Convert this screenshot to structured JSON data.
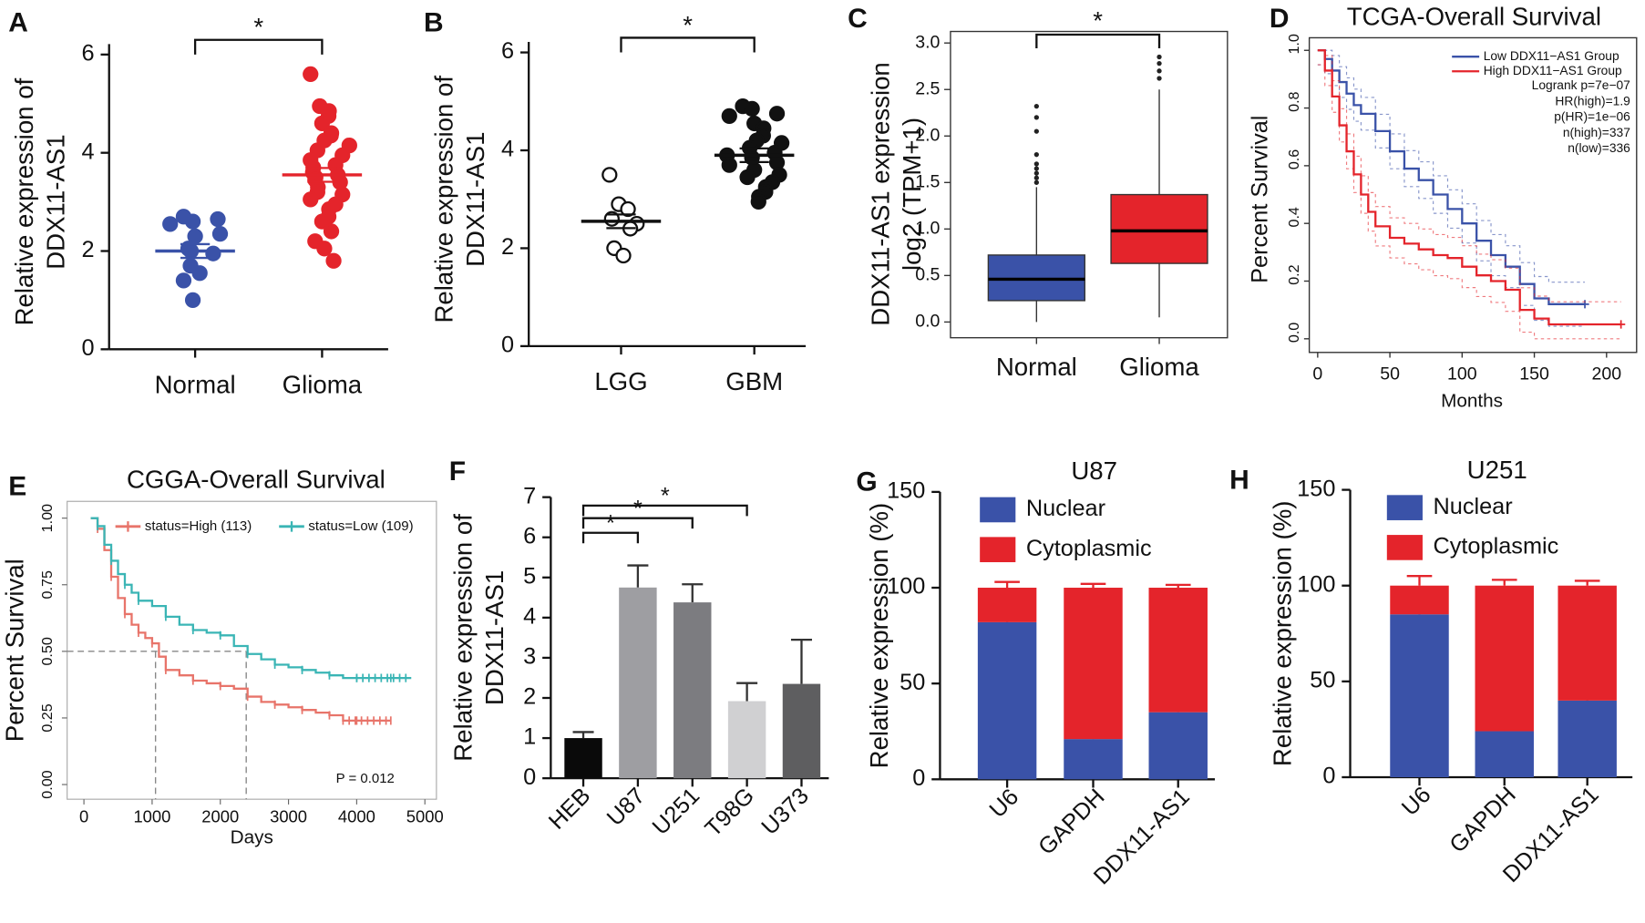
{
  "colors": {
    "blue": "#3a52a8",
    "red": "#e4242b",
    "black": "#111111",
    "salmon": "#e8746a",
    "teal": "#3ab5b5",
    "gray": "#888888"
  },
  "chart_data": [
    {
      "panel": "A",
      "type": "scatter",
      "title": "",
      "ylabel": "Relative expression of\nDDX11-AS1",
      "xlabel": "",
      "ylim": [
        0,
        6
      ],
      "yticks": [
        0,
        2,
        4,
        6
      ],
      "categories": [
        "Normal",
        "Glioma"
      ],
      "significance": "*",
      "series": [
        {
          "name": "Normal",
          "color": "#3a52a8",
          "mean": 2.0,
          "values": [
            2.7,
            2.6,
            2.65,
            2.55,
            2.3,
            2.35,
            2.05,
            1.95,
            2.0,
            1.7,
            1.55,
            1.4,
            1.0
          ]
        },
        {
          "name": "Glioma",
          "color": "#e4242b",
          "mean": 3.55,
          "values": [
            5.6,
            4.95,
            4.85,
            4.75,
            4.6,
            4.4,
            4.35,
            4.25,
            4.15,
            4.05,
            3.95,
            3.85,
            3.75,
            3.7,
            3.6,
            3.55,
            3.5,
            3.45,
            3.4,
            3.3,
            3.2,
            3.15,
            3.05,
            2.95,
            2.85,
            2.7,
            2.6,
            2.4,
            2.2,
            2.05,
            1.8
          ]
        }
      ]
    },
    {
      "panel": "B",
      "type": "scatter",
      "title": "",
      "ylabel": "Relative expression of\nDDX11-AS1",
      "xlabel": "",
      "ylim": [
        0,
        6
      ],
      "yticks": [
        0,
        2,
        4,
        6
      ],
      "categories": [
        "LGG",
        "GBM"
      ],
      "significance": "*",
      "series": [
        {
          "name": "LGG",
          "color": "#ffffff",
          "mean": 2.55,
          "values": [
            3.5,
            2.9,
            2.8,
            2.6,
            2.5,
            2.4,
            2.0,
            1.85
          ]
        },
        {
          "name": "GBM",
          "color": "#111111",
          "mean": 3.9,
          "values": [
            4.9,
            4.85,
            4.75,
            4.7,
            4.55,
            4.45,
            4.3,
            4.2,
            4.15,
            4.05,
            3.95,
            3.9,
            3.85,
            3.75,
            3.7,
            3.6,
            3.5,
            3.45,
            3.35,
            3.25,
            3.15,
            3.05,
            2.95
          ]
        }
      ]
    },
    {
      "panel": "C",
      "type": "box",
      "title": "",
      "ylabel": "DDX11-AS1 expression\nlog2 (TPM+1)",
      "xlabel": "",
      "ylim": [
        0,
        3
      ],
      "yticks": [
        "0.0",
        "0.5",
        "1.0",
        "1.5",
        "2.0",
        "2.5",
        "3.0"
      ],
      "categories": [
        "Normal",
        "Glioma"
      ],
      "significance": "*",
      "boxes": [
        {
          "name": "Normal",
          "color": "#3a52a8",
          "min": 0.0,
          "q1": 0.23,
          "median": 0.46,
          "q3": 0.72,
          "max": 1.45,
          "outliers": [
            1.5,
            1.55,
            1.6,
            1.65,
            1.7,
            1.8,
            2.05,
            2.2,
            2.32
          ]
        },
        {
          "name": "Glioma",
          "color": "#e4242b",
          "min": 0.05,
          "q1": 0.63,
          "median": 0.98,
          "q3": 1.37,
          "max": 2.5,
          "outliers": [
            2.62,
            2.7,
            2.78,
            2.85
          ]
        }
      ]
    },
    {
      "panel": "D",
      "type": "line",
      "title": "TCGA-Overall Survival",
      "xlabel": "Months",
      "ylabel": "Percent Survival",
      "xlim": [
        0,
        215
      ],
      "ylim": [
        0,
        1
      ],
      "xticks": [
        "0",
        "50",
        "100",
        "150",
        "200"
      ],
      "yticks": [
        "0.0",
        "0.2",
        "0.4",
        "0.6",
        "0.8",
        "1.0"
      ],
      "legend": [
        "Low DDX11−AS1 Group",
        "High DDX11−AS1 Group"
      ],
      "stats": [
        "Logrank p=7e−07",
        "HR(high)=1.9",
        "p(HR)=1e−06",
        "n(high)=337",
        "n(low)=336"
      ],
      "series": [
        {
          "name": "Low DDX11−AS1 Group",
          "color": "#3a52a8",
          "x": [
            0,
            5,
            10,
            15,
            20,
            25,
            30,
            40,
            50,
            60,
            70,
            80,
            90,
            100,
            110,
            120,
            130,
            140,
            150,
            160,
            170,
            180,
            185
          ],
          "y": [
            1.0,
            0.97,
            0.93,
            0.89,
            0.85,
            0.81,
            0.78,
            0.72,
            0.65,
            0.59,
            0.55,
            0.5,
            0.45,
            0.4,
            0.34,
            0.29,
            0.25,
            0.19,
            0.14,
            0.12,
            0.12,
            0.12,
            0.12
          ]
        },
        {
          "name": "High DDX11−AS1 Group",
          "color": "#e4242b",
          "x": [
            0,
            5,
            10,
            15,
            20,
            25,
            30,
            35,
            40,
            50,
            60,
            70,
            80,
            90,
            100,
            110,
            120,
            130,
            140,
            150,
            160,
            180,
            200,
            210
          ],
          "y": [
            1.0,
            0.93,
            0.84,
            0.74,
            0.65,
            0.57,
            0.5,
            0.44,
            0.39,
            0.35,
            0.33,
            0.31,
            0.29,
            0.28,
            0.25,
            0.22,
            0.2,
            0.17,
            0.1,
            0.07,
            0.05,
            0.05,
            0.05,
            0.05
          ]
        }
      ]
    },
    {
      "panel": "E",
      "type": "line",
      "title": "CGGA-Overall Survival",
      "xlabel": "Days",
      "ylabel": "Percent Survival",
      "xlim": [
        0,
        5000
      ],
      "ylim": [
        0,
        1
      ],
      "xticks": [
        "0",
        "1000",
        "2000",
        "3000",
        "4000",
        "5000"
      ],
      "yticks": [
        "0.00",
        "0.25",
        "0.50",
        "0.75",
        "1.00"
      ],
      "annotation": "P = 0.012",
      "legend": [
        "status=High (113)",
        "status=Low (109)"
      ],
      "medians": [
        1050,
        2380
      ],
      "series": [
        {
          "name": "status=High (113)",
          "color": "#e8746a",
          "x": [
            100,
            200,
            300,
            400,
            500,
            600,
            700,
            800,
            900,
            1000,
            1100,
            1200,
            1400,
            1600,
            1800,
            2000,
            2200,
            2400,
            2600,
            2800,
            3000,
            3200,
            3400,
            3600,
            3800,
            4000,
            4200,
            4500
          ],
          "y": [
            1.0,
            0.96,
            0.88,
            0.78,
            0.7,
            0.64,
            0.6,
            0.57,
            0.55,
            0.53,
            0.48,
            0.43,
            0.41,
            0.39,
            0.38,
            0.37,
            0.36,
            0.33,
            0.31,
            0.3,
            0.29,
            0.28,
            0.27,
            0.26,
            0.24,
            0.24,
            0.24,
            0.24
          ]
        },
        {
          "name": "status=Low (109)",
          "color": "#3ab5b5",
          "x": [
            100,
            200,
            300,
            400,
            500,
            600,
            700,
            800,
            1000,
            1200,
            1400,
            1600,
            1800,
            2000,
            2200,
            2400,
            2600,
            2800,
            3000,
            3200,
            3400,
            3600,
            3800,
            4000,
            4200,
            4500,
            4800
          ],
          "y": [
            1.0,
            0.97,
            0.9,
            0.84,
            0.79,
            0.75,
            0.72,
            0.69,
            0.67,
            0.63,
            0.6,
            0.58,
            0.57,
            0.56,
            0.52,
            0.49,
            0.47,
            0.45,
            0.44,
            0.43,
            0.42,
            0.41,
            0.4,
            0.4,
            0.4,
            0.4,
            0.4
          ]
        }
      ]
    },
    {
      "panel": "F",
      "type": "bar",
      "title": "",
      "ylabel": "Relative expression of\nDDX11-AS1",
      "xlabel": "",
      "ylim": [
        0,
        7
      ],
      "yticks": [
        "0",
        "1",
        "2",
        "3",
        "4",
        "5",
        "6",
        "7"
      ],
      "categories": [
        "HEB",
        "U87",
        "U251",
        "T98G",
        "U373"
      ],
      "values": [
        1.0,
        4.75,
        4.38,
        1.92,
        2.35
      ],
      "errors": [
        0.15,
        0.55,
        0.45,
        0.45,
        1.1
      ],
      "bar_colors": [
        "#0a0a0a",
        "#9e9ea2",
        "#7c7c80",
        "#d0d0d2",
        "#5e5e60"
      ],
      "significance": [
        "*",
        "*",
        "*"
      ]
    },
    {
      "panel": "G",
      "type": "bar",
      "stacked": true,
      "title": "U87",
      "ylabel": "Relative expression (%)",
      "xlabel": "",
      "ylim": [
        0,
        150
      ],
      "yticks": [
        "0",
        "50",
        "100",
        "150"
      ],
      "categories": [
        "U6",
        "GAPDH",
        "DDX11-AS1"
      ],
      "legend": [
        "Nuclear",
        "Cytoplasmic"
      ],
      "series": [
        {
          "name": "Nuclear",
          "color": "#3a52a8",
          "values": [
            82,
            21,
            35
          ],
          "errors": [
            2,
            1.5,
            1.5
          ]
        },
        {
          "name": "Cytoplasmic",
          "color": "#e4242b",
          "values": [
            18,
            79,
            65
          ],
          "errors": [
            3,
            2,
            1.5
          ]
        }
      ]
    },
    {
      "panel": "H",
      "type": "bar",
      "stacked": true,
      "title": "U251",
      "ylabel": "Relative expression (%)",
      "xlabel": "",
      "ylim": [
        0,
        150
      ],
      "yticks": [
        "0",
        "50",
        "100",
        "150"
      ],
      "categories": [
        "U6",
        "GAPDH",
        "DDX11-AS1"
      ],
      "legend": [
        "Nuclear",
        "Cytoplasmic"
      ],
      "series": [
        {
          "name": "Nuclear",
          "color": "#3a52a8",
          "values": [
            85,
            24,
            40
          ],
          "errors": [
            5,
            2.5,
            2.5
          ]
        },
        {
          "name": "Cytoplasmic",
          "color": "#e4242b",
          "values": [
            15,
            76,
            60
          ],
          "errors": [
            5,
            3,
            2.5
          ]
        }
      ]
    }
  ]
}
